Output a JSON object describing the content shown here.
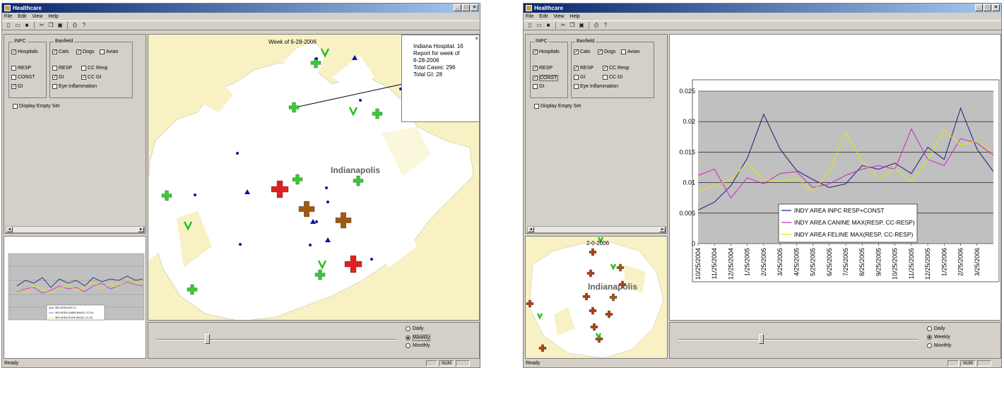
{
  "caption": "",
  "left": {
    "title": "Healthcare",
    "menu": [
      "File",
      "Edit",
      "View",
      "Help"
    ],
    "inpc": {
      "title": "INPC",
      "items": [
        {
          "label": "Hospitals",
          "checked": true
        },
        {
          "label": "RESP",
          "checked": false
        },
        {
          "label": "CONST",
          "checked": false
        },
        {
          "label": "GI",
          "checked": true
        }
      ]
    },
    "banfield": {
      "title": "Banfield",
      "row1": [
        {
          "label": "Cats",
          "checked": true
        },
        {
          "label": "Dogs",
          "checked": true
        },
        {
          "label": "Avian",
          "checked": false
        }
      ],
      "row2": [
        {
          "label": "RESP",
          "checked": false
        },
        {
          "label": "CC Resp",
          "checked": false
        }
      ],
      "row3": [
        {
          "label": "GI",
          "checked": true
        },
        {
          "label": "CC GI",
          "checked": true
        }
      ],
      "row4": [
        {
          "label": "Eye Inflammation",
          "checked": false
        }
      ]
    },
    "display_empty": "Display Empty Set",
    "map": {
      "week_label": "Week of 6-28-2006",
      "city_label": "Indianapolis",
      "popup": {
        "lines": [
          "Indiana Hospital. 16",
          "Report for week of",
          "6-28-2006",
          "Total Cases: 296",
          "Total GI: 28"
        ]
      }
    },
    "radios": [
      {
        "label": "Daily",
        "checked": false
      },
      {
        "label": "Weekly",
        "checked": true
      },
      {
        "label": "Monthly",
        "checked": false
      }
    ],
    "status": "Ready",
    "num": "NUM",
    "thumb": {
      "legend": [
        "INDY AREA INPC GI",
        "INDY AREA CANINE MAX(GI, CC-GI)",
        "INDY AREA FELINE MAX(GI, CC-GI)"
      ]
    }
  },
  "right": {
    "title": "Healthcare",
    "menu": [
      "File",
      "Edit",
      "View",
      "Help"
    ],
    "inpc": {
      "title": "INPC",
      "items": [
        {
          "label": "Hospitals",
          "checked": true
        },
        {
          "label": "RESP",
          "checked": true
        },
        {
          "label": "CONST",
          "checked": true
        },
        {
          "label": "GI",
          "checked": false
        }
      ]
    },
    "banfield": {
      "title": "Banfield",
      "row1": [
        {
          "label": "Cats",
          "checked": true
        },
        {
          "label": "Dogs",
          "checked": true
        },
        {
          "label": "Avian",
          "checked": false
        }
      ],
      "row2": [
        {
          "label": "RESP",
          "checked": true
        },
        {
          "label": "CC Resp",
          "checked": true
        }
      ],
      "row3": [
        {
          "label": "GI",
          "checked": false
        },
        {
          "label": "CC GI",
          "checked": false
        }
      ],
      "row4": [
        {
          "label": "Eye Inflammation",
          "checked": false
        }
      ]
    },
    "display_empty": "Display Empty Set",
    "minimap": {
      "week_label": "2-0-2006",
      "city_label": "Indianapolis"
    },
    "radios": [
      {
        "label": "Daily",
        "checked": false
      },
      {
        "label": "Weekly",
        "checked": true
      },
      {
        "label": "Monthly",
        "checked": false
      }
    ],
    "status": "Ready",
    "num": "NUM"
  },
  "chart_data": {
    "type": "line",
    "x": [
      "10/25/2004",
      "11/25/2004",
      "12/25/2004",
      "1/25/2005",
      "2/25/2005",
      "3/25/2005",
      "4/25/2005",
      "5/25/2005",
      "6/25/2005",
      "7/25/2005",
      "8/25/2005",
      "9/25/2005",
      "10/25/2005",
      "11/25/2005",
      "12/25/2005",
      "1/25/2006",
      "2/25/2006",
      "3/25/2006",
      "4/20/2006"
    ],
    "tick_labels": [
      "10/25/2004",
      "11/25/2004",
      "12/25/2004",
      "1/25/2005",
      "2/25/2005",
      "3/25/2005",
      "4/25/2005",
      "5/25/2005",
      "6/25/2005",
      "7/25/2005",
      "8/25/2005",
      "9/25/2005",
      "10/25/2005",
      "11/25/2005",
      "12/25/2005",
      "1/25/2006",
      "2/25/2006",
      "3/25/2006"
    ],
    "ylim": [
      0,
      0.025
    ],
    "yticks": [
      "0",
      "0.005",
      "0.01",
      "0.015",
      "0.02",
      "0.025"
    ],
    "series": [
      {
        "name": "INDY AREA INPC RESP+CONST",
        "color": "#1c1c7c",
        "values": [
          0.0055,
          0.0068,
          0.0095,
          0.014,
          0.0212,
          0.0155,
          0.012,
          0.0105,
          0.0092,
          0.0098,
          0.0128,
          0.0122,
          0.0132,
          0.0115,
          0.0158,
          0.0138,
          0.0222,
          0.0155,
          0.0118
        ]
      },
      {
        "name": "INDY AREA CANINE MAX(RESP, CC-RESP)",
        "color": "#d020d0",
        "values": [
          0.0112,
          0.0122,
          0.0075,
          0.0108,
          0.0098,
          0.0115,
          0.0118,
          0.0092,
          0.0098,
          0.0112,
          0.0122,
          0.0128,
          0.0122,
          0.0188,
          0.0138,
          0.0128,
          0.0172,
          0.0165,
          0.0145
        ]
      },
      {
        "name": "INDY AREA FELINE MAX(RESP, CC-RESP)",
        "color": "#e8e800",
        "values": [
          0.0085,
          0.0095,
          0.0105,
          0.0132,
          0.0105,
          0.0102,
          0.0108,
          0.0085,
          0.0118,
          0.0182,
          0.0135,
          0.0108,
          0.0122,
          0.0102,
          0.0138,
          0.0185,
          0.0162,
          0.0168,
          0.0148
        ]
      }
    ]
  }
}
